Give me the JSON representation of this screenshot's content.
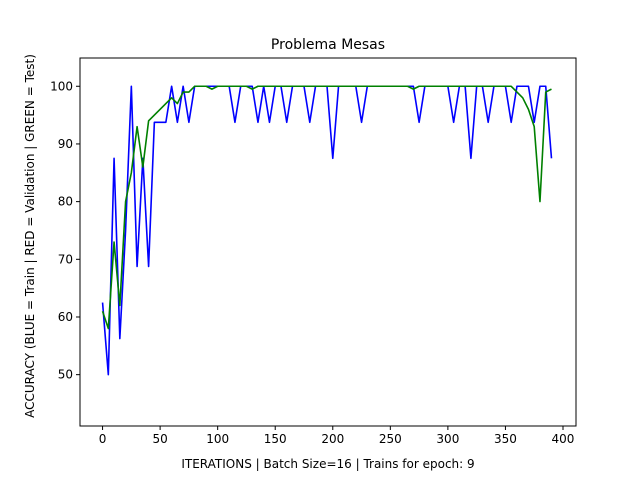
{
  "chart_data": {
    "type": "line",
    "title": "Problema Mesas",
    "xlabel": "ITERATIONS | Batch Size=16 | Trains for epoch: 9",
    "ylabel": "ACCURACY (BLUE = Train | RED = Validation | GREEN = Test)",
    "x": [
      0,
      5,
      10,
      15,
      20,
      25,
      30,
      35,
      40,
      45,
      50,
      55,
      60,
      65,
      70,
      75,
      80,
      85,
      90,
      95,
      100,
      105,
      110,
      115,
      120,
      125,
      130,
      135,
      140,
      145,
      150,
      155,
      160,
      165,
      170,
      175,
      180,
      185,
      190,
      195,
      200,
      205,
      210,
      215,
      220,
      225,
      230,
      235,
      240,
      245,
      250,
      255,
      260,
      265,
      270,
      275,
      280,
      285,
      290,
      295,
      300,
      305,
      310,
      315,
      320,
      325,
      330,
      335,
      340,
      345,
      350,
      355,
      360,
      365,
      370,
      375,
      380,
      385,
      390
    ],
    "series": [
      {
        "name": "Train",
        "color": "#0000ff",
        "values": [
          62.5,
          50,
          87.5,
          56.25,
          75,
          100,
          68.75,
          87.5,
          68.75,
          93.75,
          93.75,
          93.75,
          100,
          93.75,
          100,
          93.75,
          100,
          100,
          100,
          100,
          100,
          100,
          100,
          93.75,
          100,
          100,
          100,
          93.75,
          100,
          93.75,
          100,
          100,
          93.75,
          100,
          100,
          100,
          93.75,
          100,
          100,
          100,
          87.5,
          100,
          100,
          100,
          100,
          93.75,
          100,
          100,
          100,
          100,
          100,
          100,
          100,
          100,
          100,
          93.75,
          100,
          100,
          100,
          100,
          100,
          93.75,
          100,
          100,
          87.5,
          100,
          100,
          93.75,
          100,
          100,
          100,
          93.75,
          100,
          100,
          100,
          93.75,
          100,
          100,
          87.5
        ]
      },
      {
        "name": "Test",
        "color": "#008000",
        "values": [
          61,
          58,
          73,
          62,
          80,
          85,
          93,
          86,
          94,
          95,
          96,
          97,
          98,
          97,
          99,
          99,
          100,
          100,
          100,
          99.5,
          100,
          100,
          100,
          100,
          100,
          100,
          99.5,
          100,
          100,
          100,
          100,
          100,
          100,
          100,
          100,
          100,
          100,
          100,
          100,
          100,
          100,
          100,
          100,
          100,
          100,
          100,
          100,
          100,
          100,
          100,
          100,
          100,
          100,
          100,
          99.5,
          100,
          100,
          100,
          100,
          100,
          100,
          100,
          100,
          100,
          100,
          100,
          100,
          100,
          100,
          100,
          100,
          100,
          99,
          98,
          96,
          93,
          80,
          99,
          99.5
        ]
      }
    ],
    "xlim": [
      -19.6,
      411.3
    ],
    "ylim": [
      41.1,
      104.9
    ],
    "xticks": [
      0,
      50,
      100,
      150,
      200,
      250,
      300,
      350,
      400
    ],
    "yticks": [
      50,
      60,
      70,
      80,
      90,
      100
    ]
  }
}
